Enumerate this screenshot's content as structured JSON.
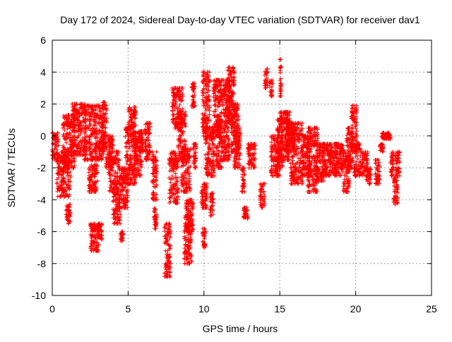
{
  "chart_data": {
    "type": "scatter",
    "title": "Day 172 of 2024, Sidereal Day-to-day VTEC variation (SDTVAR) for receiver dav1",
    "xlabel": "GPS time / hours",
    "ylabel": "SDTVAR / TECUs",
    "xlim": [
      0,
      25
    ],
    "ylim": [
      -10,
      6
    ],
    "xticks": [
      0,
      5,
      10,
      15,
      20,
      25
    ],
    "yticks": [
      -10,
      -8,
      -6,
      -4,
      -2,
      0,
      2,
      4,
      6
    ],
    "xtick_labels": [
      "0",
      "5",
      "10",
      "15",
      "20",
      "25"
    ],
    "ytick_labels": [
      "-10",
      "-8",
      "-6",
      "-4",
      "-2",
      "0",
      "2",
      "4",
      "6"
    ],
    "grid": true,
    "marker": "+",
    "color": "#ff0000",
    "series": [
      {
        "name": "dav1",
        "clusters": [
          {
            "x": [
              0.0,
              0.4
            ],
            "y": [
              -1.5,
              0.2
            ]
          },
          {
            "x": [
              0.3,
              1.2
            ],
            "y": [
              -3.8,
              -1.0
            ]
          },
          {
            "x": [
              0.7,
              1.5
            ],
            "y": [
              -2.0,
              1.3
            ]
          },
          {
            "x": [
              0.9,
              1.2
            ],
            "y": [
              -5.5,
              -4.3
            ]
          },
          {
            "x": [
              1.3,
              2.2
            ],
            "y": [
              -1.2,
              2.0
            ]
          },
          {
            "x": [
              2.1,
              3.4
            ],
            "y": [
              -1.5,
              1.9
            ]
          },
          {
            "x": [
              2.4,
              3.0
            ],
            "y": [
              -3.5,
              -1.8
            ]
          },
          {
            "x": [
              2.5,
              3.1
            ],
            "y": [
              -7.2,
              -5.5
            ]
          },
          {
            "x": [
              3.0,
              3.3
            ],
            "y": [
              -6.5,
              -5.5
            ]
          },
          {
            "x": [
              3.3,
              3.6
            ],
            "y": [
              -1.0,
              2.1
            ]
          },
          {
            "x": [
              3.5,
              4.0
            ],
            "y": [
              -2.0,
              0.0
            ]
          },
          {
            "x": [
              3.7,
              4.4
            ],
            "y": [
              -3.5,
              -1.0
            ]
          },
          {
            "x": [
              4.0,
              4.5
            ],
            "y": [
              -5.5,
              -3.5
            ]
          },
          {
            "x": [
              4.4,
              5.0
            ],
            "y": [
              -4.5,
              -2.0
            ]
          },
          {
            "x": [
              4.5,
              4.7
            ],
            "y": [
              -6.6,
              -6.0
            ]
          },
          {
            "x": [
              4.8,
              5.5
            ],
            "y": [
              -3.0,
              0.5
            ]
          },
          {
            "x": [
              5.0,
              5.5
            ],
            "y": [
              0.5,
              1.8
            ]
          },
          {
            "x": [
              5.4,
              5.9
            ],
            "y": [
              -2.5,
              0.2
            ]
          },
          {
            "x": [
              5.7,
              6.0
            ],
            "y": [
              -1.0,
              0.3
            ]
          },
          {
            "x": [
              6.1,
              6.5
            ],
            "y": [
              -1.5,
              0.8
            ]
          },
          {
            "x": [
              6.6,
              6.9
            ],
            "y": [
              -4.0,
              -1.0
            ]
          },
          {
            "x": [
              6.7,
              6.9
            ],
            "y": [
              -5.8,
              -4.5
            ]
          },
          {
            "x": [
              7.4,
              7.8
            ],
            "y": [
              -8.8,
              -5.5
            ]
          },
          {
            "x": [
              7.7,
              8.3
            ],
            "y": [
              -4.2,
              -1.0
            ]
          },
          {
            "x": [
              7.9,
              8.6
            ],
            "y": [
              0.5,
              3.0
            ]
          },
          {
            "x": [
              8.3,
              8.8
            ],
            "y": [
              -1.5,
              1.5
            ]
          },
          {
            "x": [
              8.5,
              9.1
            ],
            "y": [
              -3.5,
              -0.8
            ]
          },
          {
            "x": [
              8.7,
              9.2
            ],
            "y": [
              -8.0,
              -5.0
            ]
          },
          {
            "x": [
              8.8,
              9.3
            ],
            "y": [
              -6.0,
              -4.0
            ]
          },
          {
            "x": [
              9.2,
              9.4
            ],
            "y": [
              1.8,
              3.3
            ]
          },
          {
            "x": [
              9.3,
              9.5
            ],
            "y": [
              -2.0,
              -0.5
            ]
          },
          {
            "x": [
              9.9,
              10.1
            ],
            "y": [
              -7.0,
              -5.8
            ]
          },
          {
            "x": [
              9.8,
              10.2
            ],
            "y": [
              -4.5,
              -3.0
            ]
          },
          {
            "x": [
              9.9,
              10.4
            ],
            "y": [
              0.0,
              4.0
            ]
          },
          {
            "x": [
              10.1,
              10.7
            ],
            "y": [
              -2.5,
              0.5
            ]
          },
          {
            "x": [
              10.4,
              10.6
            ],
            "y": [
              -5.0,
              -3.5
            ]
          },
          {
            "x": [
              10.6,
              11.1
            ],
            "y": [
              0.0,
              3.5
            ]
          },
          {
            "x": [
              10.8,
              11.2
            ],
            "y": [
              -2.0,
              1.0
            ]
          },
          {
            "x": [
              11.1,
              11.7
            ],
            "y": [
              -1.5,
              3.5
            ]
          },
          {
            "x": [
              11.5,
              12.0
            ],
            "y": [
              0.5,
              4.3
            ]
          },
          {
            "x": [
              11.8,
              12.3
            ],
            "y": [
              -1.0,
              2.0
            ]
          },
          {
            "x": [
              12.0,
              12.4
            ],
            "y": [
              -2.0,
              0.5
            ]
          },
          {
            "x": [
              12.6,
              12.9
            ],
            "y": [
              -5.2,
              -4.5
            ]
          },
          {
            "x": [
              12.5,
              12.7
            ],
            "y": [
              -3.5,
              -2.0
            ]
          },
          {
            "x": [
              12.9,
              13.4
            ],
            "y": [
              -2.0,
              -0.5
            ]
          },
          {
            "x": [
              13.7,
              14.0
            ],
            "y": [
              -4.5,
              -3.0
            ]
          },
          {
            "x": [
              14.0,
              14.2
            ],
            "y": [
              3.0,
              4.2
            ]
          },
          {
            "x": [
              14.3,
              14.5
            ],
            "y": [
              2.5,
              3.5
            ]
          },
          {
            "x": [
              14.4,
              15.0
            ],
            "y": [
              -2.5,
              0.0
            ]
          },
          {
            "x": [
              14.8,
              15.2
            ],
            "y": [
              -2.0,
              1.0
            ]
          },
          {
            "x": [
              15.0,
              15.1
            ],
            "y": [
              2.5,
              4.8
            ]
          },
          {
            "x": [
              15.0,
              15.7
            ],
            "y": [
              -1.5,
              1.5
            ]
          },
          {
            "x": [
              15.4,
              16.0
            ],
            "y": [
              -1.0,
              0.8
            ]
          },
          {
            "x": [
              15.7,
              16.5
            ],
            "y": [
              -3.0,
              0.8
            ]
          },
          {
            "x": [
              16.5,
              17.0
            ],
            "y": [
              -2.5,
              0.0
            ]
          },
          {
            "x": [
              16.8,
              17.5
            ],
            "y": [
              -3.5,
              0.5
            ]
          },
          {
            "x": [
              17.4,
              18.0
            ],
            "y": [
              -2.8,
              -0.5
            ]
          },
          {
            "x": [
              17.8,
              18.8
            ],
            "y": [
              -2.5,
              -0.5
            ]
          },
          {
            "x": [
              18.6,
              19.2
            ],
            "y": [
              -2.5,
              -0.5
            ]
          },
          {
            "x": [
              19.2,
              19.6
            ],
            "y": [
              -3.5,
              -1.0
            ]
          },
          {
            "x": [
              19.4,
              19.8
            ],
            "y": [
              -2.0,
              0.5
            ]
          },
          {
            "x": [
              19.7,
              20.1
            ],
            "y": [
              -1.0,
              1.9
            ]
          },
          {
            "x": [
              19.9,
              20.3
            ],
            "y": [
              -2.5,
              -0.5
            ]
          },
          {
            "x": [
              20.3,
              20.8
            ],
            "y": [
              -2.5,
              -1.0
            ]
          },
          {
            "x": [
              20.7,
              21.0
            ],
            "y": [
              -3.0,
              -2.0
            ]
          },
          {
            "x": [
              21.3,
              21.6
            ],
            "y": [
              -3.0,
              -1.5
            ]
          },
          {
            "x": [
              21.6,
              21.8
            ],
            "y": [
              -1.0,
              -0.5
            ]
          },
          {
            "x": [
              21.7,
              22.3
            ],
            "y": [
              -0.2,
              0.2
            ]
          },
          {
            "x": [
              22.3,
              22.5
            ],
            "y": [
              -2.5,
              -1.0
            ]
          },
          {
            "x": [
              22.5,
              22.8
            ],
            "y": [
              -4.3,
              -2.5
            ]
          },
          {
            "x": [
              22.6,
              22.9
            ],
            "y": [
              -2.5,
              -1.0
            ]
          }
        ]
      }
    ]
  }
}
